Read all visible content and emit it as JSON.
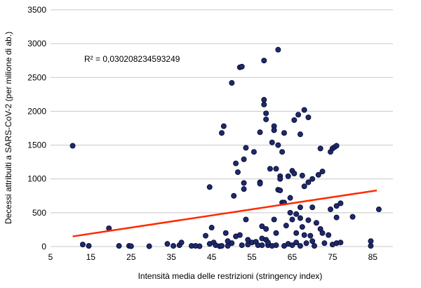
{
  "chart_data": {
    "type": "scatter",
    "title": "",
    "xlabel": "Intensità media delle restrizioni (stringency index)",
    "ylabel": "Decessi attribuiti a SARS-CoV-2 (per milione di ab.)",
    "annotation": "R² = 0,030208234593249",
    "xlim": [
      5,
      90
    ],
    "ylim": [
      0,
      3500
    ],
    "x_ticks": [
      "5",
      "15",
      "25",
      "35",
      "45",
      "55",
      "65",
      "75",
      "85"
    ],
    "y_ticks": [
      "0",
      "500",
      "1000",
      "1500",
      "2000",
      "2500",
      "3000",
      "3500"
    ],
    "grid": "horizontal",
    "legend": "none",
    "colors": {
      "marker_fill": "#1f2a6b",
      "marker_edge": "#0a0f3a",
      "trendline": "#ff2a00",
      "grid": "#c8c8c8"
    },
    "trendline": {
      "x": [
        10.5,
        86
      ],
      "y": [
        150,
        830
      ]
    },
    "series": [
      {
        "values": [
          [
            10.5,
            1490
          ],
          [
            13,
            30
          ],
          [
            14.5,
            10
          ],
          [
            19.5,
            270
          ],
          [
            22,
            10
          ],
          [
            24.5,
            10
          ],
          [
            25,
            5
          ],
          [
            29.5,
            5
          ],
          [
            34,
            40
          ],
          [
            35.5,
            10
          ],
          [
            37,
            20
          ],
          [
            37.5,
            60
          ],
          [
            40,
            10
          ],
          [
            41,
            10
          ],
          [
            42,
            5
          ],
          [
            43.5,
            160
          ],
          [
            44.5,
            880
          ],
          [
            44.5,
            40
          ],
          [
            45,
            280
          ],
          [
            45.5,
            60
          ],
          [
            46,
            20
          ],
          [
            47,
            5
          ],
          [
            47.5,
            10
          ],
          [
            47.5,
            1680
          ],
          [
            48,
            1780
          ],
          [
            48.5,
            200
          ],
          [
            49,
            80
          ],
          [
            49,
            10
          ],
          [
            50,
            2420
          ],
          [
            50,
            50
          ],
          [
            50.5,
            750
          ],
          [
            51,
            150
          ],
          [
            51,
            1230
          ],
          [
            51.5,
            1100
          ],
          [
            52,
            2650
          ],
          [
            52,
            170
          ],
          [
            52.5,
            2660
          ],
          [
            52.5,
            20
          ],
          [
            53,
            850
          ],
          [
            53,
            940
          ],
          [
            53,
            1290
          ],
          [
            53.5,
            1460
          ],
          [
            53.5,
            400
          ],
          [
            54,
            100
          ],
          [
            54,
            30
          ],
          [
            55,
            60
          ],
          [
            55.5,
            1400
          ],
          [
            56,
            70
          ],
          [
            56.5,
            20
          ],
          [
            57,
            1690
          ],
          [
            57,
            950
          ],
          [
            57,
            930
          ],
          [
            57.5,
            300
          ],
          [
            57.5,
            120
          ],
          [
            57.5,
            20
          ],
          [
            58,
            2170
          ],
          [
            58,
            2100
          ],
          [
            58,
            2750
          ],
          [
            58.5,
            1970
          ],
          [
            58.5,
            1880
          ],
          [
            58.5,
            260
          ],
          [
            58.5,
            100
          ],
          [
            59,
            20
          ],
          [
            59,
            60
          ],
          [
            59.5,
            1150
          ],
          [
            60,
            1540
          ],
          [
            60,
            10
          ],
          [
            60.5,
            1780
          ],
          [
            60.5,
            1720
          ],
          [
            60.5,
            400
          ],
          [
            61,
            1150
          ],
          [
            61,
            20
          ],
          [
            61,
            200
          ],
          [
            61.5,
            840
          ],
          [
            61.5,
            2910
          ],
          [
            61.5,
            1500
          ],
          [
            62,
            830
          ],
          [
            62,
            1040
          ],
          [
            62,
            1000
          ],
          [
            62.5,
            1400
          ],
          [
            62.5,
            650
          ],
          [
            63,
            650
          ],
          [
            63,
            1680
          ],
          [
            63,
            10
          ],
          [
            63.5,
            310
          ],
          [
            64,
            1040
          ],
          [
            64,
            40
          ],
          [
            64.5,
            500
          ],
          [
            64.5,
            720
          ],
          [
            65,
            1120
          ],
          [
            65,
            400
          ],
          [
            65,
            20
          ],
          [
            65.5,
            1870
          ],
          [
            65.5,
            1080
          ],
          [
            66,
            480
          ],
          [
            66,
            200
          ],
          [
            66,
            60
          ],
          [
            66.5,
            1950
          ],
          [
            67,
            1660
          ],
          [
            67,
            580
          ],
          [
            67,
            420
          ],
          [
            67,
            10
          ],
          [
            67.5,
            1050
          ],
          [
            67.5,
            290
          ],
          [
            68,
            2020
          ],
          [
            68,
            890
          ],
          [
            68,
            170
          ],
          [
            68.5,
            50
          ],
          [
            69,
            1910
          ],
          [
            69,
            950
          ],
          [
            69,
            390
          ],
          [
            69.5,
            160
          ],
          [
            70,
            1000
          ],
          [
            70,
            580
          ],
          [
            70,
            80
          ],
          [
            70.5,
            10
          ],
          [
            71,
            350
          ],
          [
            71.5,
            1060
          ],
          [
            72,
            1450
          ],
          [
            72,
            260
          ],
          [
            72.5,
            1110
          ],
          [
            72.5,
            200
          ],
          [
            73,
            50
          ],
          [
            74,
            170
          ],
          [
            74.5,
            1400
          ],
          [
            74.5,
            550
          ],
          [
            75,
            1450
          ],
          [
            75,
            30
          ],
          [
            75.5,
            1470
          ],
          [
            76,
            1490
          ],
          [
            76,
            600
          ],
          [
            76,
            430
          ],
          [
            76,
            50
          ],
          [
            77,
            640
          ],
          [
            77,
            60
          ],
          [
            80,
            440
          ],
          [
            84.5,
            80
          ],
          [
            84.5,
            10
          ],
          [
            86.5,
            550
          ]
        ]
      }
    ]
  }
}
